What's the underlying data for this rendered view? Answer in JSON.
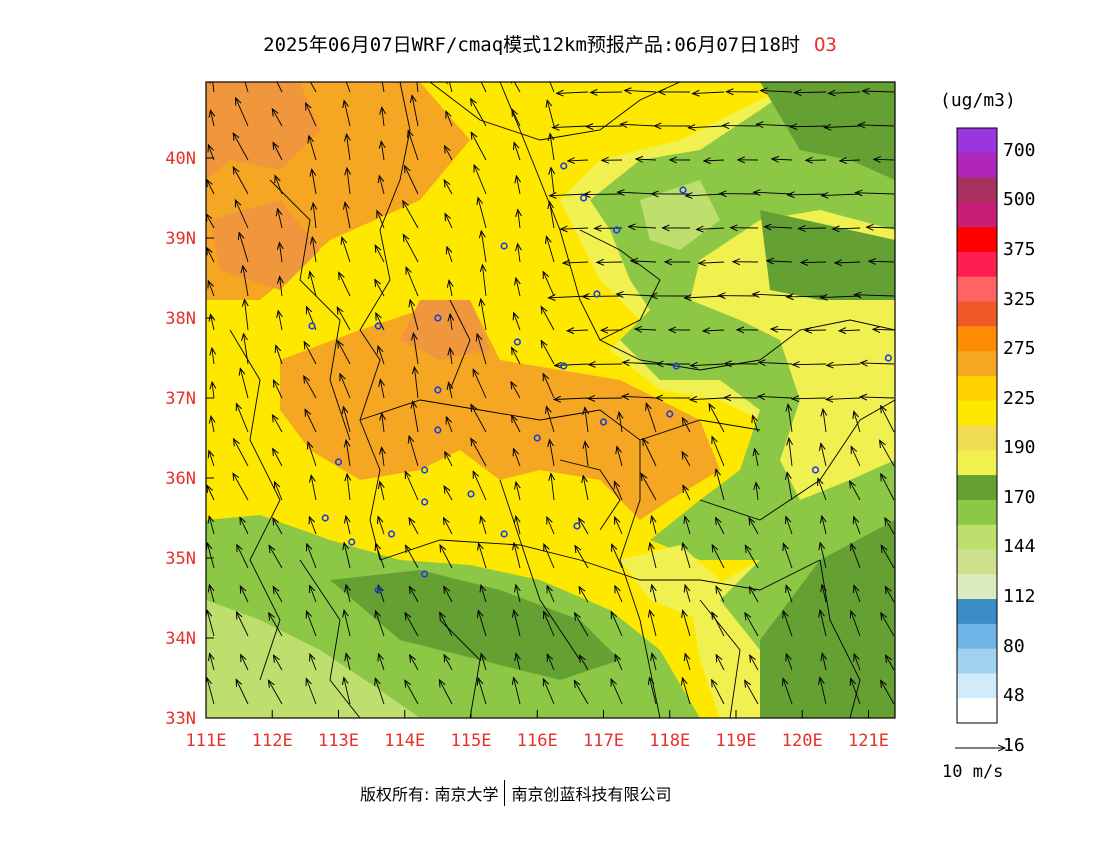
{
  "title": {
    "main": "2025年06月07日WRF/cmaq模式12km预报产品:06月07日18时",
    "variable": "O3"
  },
  "axes": {
    "lon_labels": [
      "111E",
      "112E",
      "113E",
      "114E",
      "115E",
      "116E",
      "117E",
      "118E",
      "119E",
      "120E",
      "121E"
    ],
    "lat_labels": [
      "40N",
      "39N",
      "38N",
      "37N",
      "36N",
      "35N",
      "34N",
      "33N"
    ],
    "lon_range": [
      111,
      121.4
    ],
    "lat_range": [
      33,
      40.95
    ]
  },
  "legend": {
    "unit": "(ug/m3)",
    "labels": [
      "700",
      "500",
      "375",
      "325",
      "275",
      "225",
      "190",
      "170",
      "144",
      "112",
      "80",
      "48",
      "16"
    ],
    "colors": [
      "#9a35e0",
      "#b026b8",
      "#a83060",
      "#c81e78",
      "#ff0000",
      "#ff1e50",
      "#ff6464",
      "#f05a28",
      "#ff8c00",
      "#f5a623",
      "#ffd200",
      "#ffe800",
      "#f0dc50",
      "#f0f050",
      "#64a032",
      "#8cc846",
      "#bede6e",
      "#cde08c",
      "#dcebbe",
      "#3c8cc8",
      "#6eb4e6",
      "#a0d2f0",
      "#d2ebfa",
      "#ffffff"
    ]
  },
  "vector_ref": {
    "label": "10 m/s"
  },
  "footer": {
    "copyright": "版权所有: 南京大学",
    "company": "南京创蓝科技有限公司"
  },
  "zones": {
    "low_orange_south": "#8cc846",
    "east_green": "#64a032",
    "mid_yellow": "#ffe800",
    "orange_band": "#f5a623"
  },
  "cities": [
    [
      116.4,
      39.9
    ],
    [
      117.2,
      39.1
    ],
    [
      114.5,
      38.0
    ],
    [
      112.6,
      37.9
    ],
    [
      113.6,
      37.9
    ],
    [
      115.5,
      38.9
    ],
    [
      116.7,
      39.5
    ],
    [
      118.2,
      39.6
    ],
    [
      116.9,
      38.3
    ],
    [
      115.7,
      37.7
    ],
    [
      116.4,
      37.4
    ],
    [
      114.5,
      37.1
    ],
    [
      114.5,
      36.6
    ],
    [
      113.0,
      36.2
    ],
    [
      114.3,
      36.1
    ],
    [
      113.8,
      35.3
    ],
    [
      114.3,
      35.7
    ],
    [
      115.0,
      35.8
    ],
    [
      115.5,
      35.3
    ],
    [
      116.0,
      36.5
    ],
    [
      117.0,
      36.7
    ],
    [
      118.1,
      37.4
    ],
    [
      118.0,
      36.8
    ],
    [
      116.6,
      35.4
    ],
    [
      112.8,
      35.5
    ],
    [
      113.2,
      35.2
    ],
    [
      114.3,
      34.8
    ],
    [
      113.6,
      34.6
    ],
    [
      120.2,
      36.1
    ],
    [
      121.3,
      37.5
    ]
  ]
}
